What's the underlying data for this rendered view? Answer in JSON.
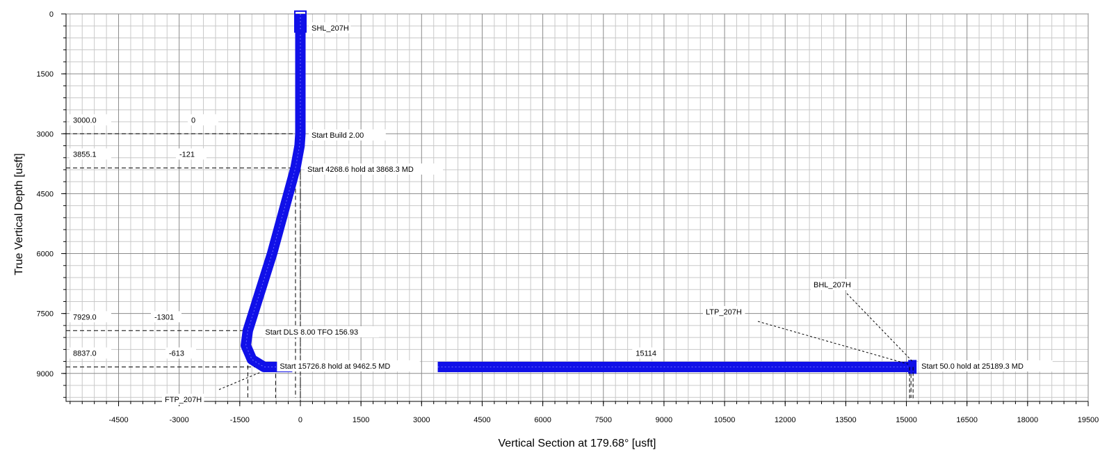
{
  "chart_data": {
    "type": "line",
    "xlabel": "Vertical Section at 179.68° [usft]",
    "ylabel": "True Vertical Depth [usft]",
    "xlim": [
      -5800,
      19500
    ],
    "ylim": [
      0,
      9700
    ],
    "y_inverted": true,
    "grid": true,
    "x_ticks": [
      -4500,
      -3000,
      -1500,
      0,
      1500,
      3000,
      4500,
      6000,
      7500,
      9000,
      10500,
      12000,
      13500,
      15000,
      16500,
      18000,
      19500
    ],
    "y_ticks": [
      0,
      1500,
      3000,
      4500,
      6000,
      7500,
      9000
    ],
    "series": [
      {
        "color": "#0000ee",
        "x": [
          0,
          0,
          -20,
          -121,
          -700,
          -1301,
          -1350,
          -1200,
          -900,
          -613,
          -200,
          3400,
          15114
        ],
        "y": [
          0,
          3000,
          3300,
          3855,
          6000,
          7929,
          8300,
          8650,
          8837,
          8837,
          8837,
          8837,
          8837
        ]
      }
    ],
    "annotations": [
      {
        "text": "SHL_207H",
        "x": 0,
        "y": 200
      },
      {
        "text": "Start Build 2.00",
        "x": 0,
        "y": 3000
      },
      {
        "text": "Start 4268.6 hold at 3868.3 MD",
        "x": -121,
        "y": 3855
      },
      {
        "text": "Start DLS 8.00 TFO 156.93",
        "x": -1301,
        "y": 7929
      },
      {
        "text": "Start 15726.8 hold at 9462.5 MD",
        "x": -613,
        "y": 8837
      },
      {
        "text": "Start 50.0 hold at 25189.3 MD",
        "x": 15114,
        "y": 8837
      },
      {
        "text": "FTP_207H",
        "x": -1000,
        "y": 8837
      },
      {
        "text": "LTP_207H",
        "x": 15114,
        "y": 8837
      },
      {
        "text": "BHL_207H",
        "x": 15114,
        "y": 8837
      }
    ],
    "reference_lines": [
      {
        "tvd": 3000.0,
        "vs": 0,
        "tvd_label": "3000.0",
        "vs_label": "0"
      },
      {
        "tvd": 3855.1,
        "vs": -121,
        "tvd_label": "3855.1",
        "vs_label": "-121"
      },
      {
        "tvd": 7929.0,
        "vs": -1301,
        "tvd_label": "7929.0",
        "vs_label": "-1301"
      },
      {
        "tvd": 8837.0,
        "vs": -613,
        "tvd_label": "8837.0",
        "vs_label": "-613"
      },
      {
        "tvd": 8837.0,
        "vs": 15114,
        "tvd_label": "",
        "vs_label": "15114"
      }
    ]
  }
}
